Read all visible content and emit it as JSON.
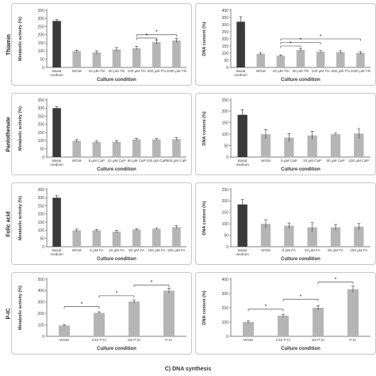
{
  "row_labels": [
    "Thiamin",
    "Pantothenate",
    "Folic acid",
    "P-IC"
  ],
  "footer_label": "C) DNA synthesis",
  "colors": {
    "dark_bar": "#3a3a3a",
    "light_bar": "#b5b5b5",
    "axis": "#555555"
  },
  "chart_data": [
    {
      "type": "bar",
      "categories": [
        "Basal medium",
        "WGM",
        "10 μM Thi",
        "50 μM Thi",
        "100 μM Thi",
        "500 μM Thi",
        "1000 μM Thi"
      ],
      "values": [
        285,
        100,
        92,
        110,
        118,
        155,
        165
      ],
      "errors": [
        8,
        6,
        10,
        12,
        10,
        14,
        12
      ],
      "ylabel": "Metabolic activity (%)",
      "xlabel": "Culture condition",
      "ylim": [
        0,
        350
      ],
      "yticks": [
        0,
        50,
        100,
        150,
        200,
        250,
        300,
        350
      ],
      "significance": [
        {
          "from": 4,
          "to": 6,
          "level": 200,
          "label": "*"
        },
        {
          "from": 4,
          "to": 5,
          "level": 180,
          "label": "*"
        }
      ]
    },
    {
      "type": "bar",
      "categories": [
        "Basal medium",
        "WGM",
        "10 μM Thi",
        "50 μM Thi",
        "100 μM Thi",
        "500 μM Thi",
        "1000 μM Thi"
      ],
      "values": [
        320,
        95,
        82,
        122,
        110,
        108,
        102
      ],
      "errors": [
        35,
        6,
        6,
        10,
        8,
        10,
        9
      ],
      "ylabel": "DNA content (%)",
      "xlabel": "Culture condition",
      "ylim": [
        0,
        400
      ],
      "yticks": [
        0,
        50,
        100,
        150,
        200,
        250,
        300,
        350,
        400
      ],
      "significance": [
        {
          "from": 2,
          "to": 6,
          "level": 200,
          "label": "*"
        },
        {
          "from": 2,
          "to": 4,
          "level": 175,
          "label": "*"
        },
        {
          "from": 2,
          "to": 3,
          "level": 150,
          "label": "*"
        }
      ]
    },
    {
      "type": "bar",
      "categories": [
        "Basal medium",
        "WGM",
        "5 μM CaP",
        "10 μM CaP",
        "50 μM CaP",
        "100 μM CaP",
        "500 μM CaP"
      ],
      "values": [
        300,
        100,
        92,
        94,
        108,
        108,
        110
      ],
      "errors": [
        8,
        8,
        6,
        8,
        6,
        6,
        8
      ],
      "ylabel": "Metabolic activity (%)",
      "xlabel": "Culture condition",
      "ylim": [
        0,
        350
      ],
      "yticks": [
        0,
        50,
        100,
        150,
        200,
        250,
        300,
        350
      ],
      "significance": []
    },
    {
      "type": "bar",
      "categories": [
        "Basal medium",
        "WGM",
        "5 μM CaP",
        "10 μM CaP",
        "50 μM CaP",
        "100 μM CaP"
      ],
      "values": [
        185,
        100,
        85,
        95,
        100,
        103
      ],
      "errors": [
        22,
        20,
        18,
        18,
        5,
        22
      ],
      "ylabel": "DNA content (%)",
      "xlabel": "Culture condition",
      "ylim": [
        0,
        250
      ],
      "yticks": [
        0,
        50,
        100,
        150,
        200,
        250
      ],
      "significance": []
    },
    {
      "type": "bar",
      "categories": [
        "Basal medium",
        "WGM",
        "5 μM FA",
        "10 μM FA",
        "50 μM FA",
        "100 μM FA",
        "500 μM FA"
      ],
      "values": [
        300,
        100,
        100,
        92,
        105,
        110,
        120
      ],
      "errors": [
        12,
        8,
        6,
        8,
        6,
        6,
        8
      ],
      "ylabel": "Metabolic activity (%)",
      "xlabel": "Culture condition",
      "ylim": [
        0,
        350
      ],
      "yticks": [
        0,
        50,
        100,
        150,
        200,
        250,
        300,
        350
      ],
      "significance": []
    },
    {
      "type": "bar",
      "categories": [
        "Basal medium",
        "WGM",
        "5 μM FA",
        "10 μM FA",
        "50 μM FA",
        "100 μM FA"
      ],
      "values": [
        185,
        100,
        92,
        85,
        85,
        88
      ],
      "errors": [
        22,
        18,
        12,
        20,
        12,
        14
      ],
      "ylabel": "DNA content (%)",
      "xlabel": "Culture condition",
      "ylim": [
        0,
        250
      ],
      "yticks": [
        0,
        50,
        100,
        150,
        200,
        250
      ],
      "significance": []
    },
    {
      "type": "bar",
      "categories": [
        "WGM",
        "1/10 P-IC",
        "1/5 P-IC",
        "P-IC"
      ],
      "values": [
        95,
        205,
        305,
        400
      ],
      "errors": [
        8,
        10,
        14,
        22
      ],
      "ylabel": "Metabolic activity (%)",
      "xlabel": "Culture condition",
      "ylim": [
        0,
        500
      ],
      "yticks": [
        0,
        100,
        200,
        300,
        400,
        500
      ],
      "significance": [
        {
          "from": 0,
          "to": 1,
          "level": 260,
          "label": "*"
        },
        {
          "from": 1,
          "to": 2,
          "level": 355,
          "label": "*"
        },
        {
          "from": 2,
          "to": 3,
          "level": 450,
          "label": "*"
        }
      ]
    },
    {
      "type": "bar",
      "categories": [
        "WGM",
        "1/10 P-IC",
        "1/5 P-IC",
        "P-IC"
      ],
      "values": [
        100,
        145,
        200,
        330
      ],
      "errors": [
        8,
        10,
        15,
        22
      ],
      "ylabel": "DNA content (%)",
      "xlabel": "Culture condition",
      "ylim": [
        0,
        400
      ],
      "yticks": [
        0,
        100,
        200,
        300,
        400
      ],
      "significance": [
        {
          "from": 0,
          "to": 1,
          "level": 190,
          "label": "*"
        },
        {
          "from": 1,
          "to": 2,
          "level": 260,
          "label": "*"
        },
        {
          "from": 2,
          "to": 3,
          "level": 380,
          "label": "*"
        }
      ]
    }
  ]
}
